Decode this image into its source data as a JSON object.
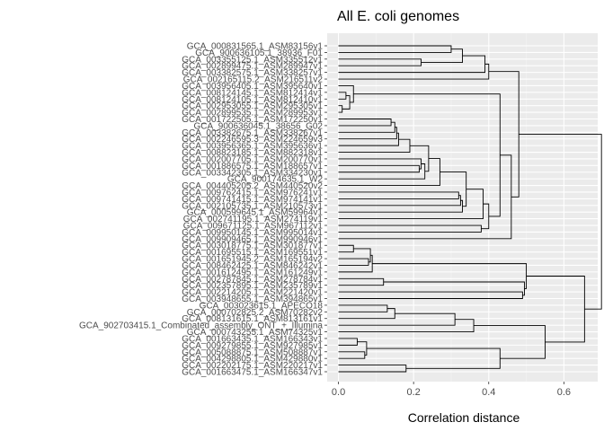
{
  "chart_data": {
    "type": "dendrogram",
    "title": "All E. coli genomes",
    "xlabel": "Correlation distance",
    "ylabel": "",
    "xlim": [
      -0.03,
      0.69
    ],
    "x_ticks": [
      0.0,
      0.2,
      0.4,
      0.6
    ],
    "x_tick_labels": [
      "0.0",
      "0.2",
      "0.4",
      "0.6"
    ],
    "grid": true,
    "panel_color": "#ebebeb",
    "line_color": "#000000",
    "leaves": [
      "GCA_000831565.1_ASM83156v1",
      "GCA_900636105.1_38936_F01",
      "GCA_003355125.1_ASM335512v1",
      "GCA_002899475.1_ASM289947v1",
      "GCA_003382575.1_ASM338257v1",
      "GCA_002165115.2_ASM216511v2",
      "GCA_003956405.1_ASM395640v1",
      "GCA_008124145.1_ASM812414v1",
      "GCA_008124105.1_ASM812410v1",
      "GCA_002953055.1_ASM295305v1",
      "GCA_002899535.1_ASM289953v1",
      "GCA_001722505.1_ASM172250v1",
      "GCA_900636045.1_38656_G02",
      "GCA_003382675.1_ASM338267v1",
      "GCA_002246595.3_ASM224659v3",
      "GCA_003956365.1_ASM395636v1",
      "GCA_008823185.1_ASM882318v1",
      "GCA_002007705.1_ASM200770v1",
      "GCA_001886575.1_ASM188657v1",
      "GCA_003342305.1_ASM334230v1",
      "GCA_900174635.1_W2",
      "GCA_004405205.2_ASM440520v2",
      "GCA_009762415.1_ASM976241v1",
      "GCA_009741415.1_ASM974141v1",
      "GCA_002105735.1_ASM210573v1",
      "GCA_000599645.1_ASM59964v1",
      "GCA_002741195.1_ASM274119v1",
      "GCA_009671125.1_ASM967112v1",
      "GCA_009950145.1_ASM995014v1",
      "GCA_009909465.1_ASM990946v1",
      "GCA_003018775.1_ASM301877v1",
      "GCA_001695515.1_ASM169551v1",
      "GCA_001651945.2_ASM165194v2",
      "GCA_008462425.1_ASM846242v1",
      "GCA_001612495.1_ASM161249v1",
      "GCA_002787845.1_ASM278784v1",
      "GCA_002357895.1_ASM235789v1",
      "GCA_002214205.1_ASM221420v1",
      "GCA_003948655.1_ASM394865v1",
      "GCA_003023615.1_APECO18",
      "GCA_000702825.2_ASM70282v2",
      "GCA_008131615.1_ASM813161v1",
      "GCA_902703415.1_Combinated_assembly_ONT_+_Illumina",
      "GCA_000743255.1_ASM74325v1",
      "GCA_001663435.1_ASM166343v1",
      "GCA_009279855.1_ASM927985v1",
      "GCA_005088875.1_ASM508887v1",
      "GCA_004298805.1_ASM429880v1",
      "GCA_002202175.1_ASM220217v1",
      "GCA_001663475.1_ASM166347v1"
    ],
    "merges": [
      {
        "a": "L0",
        "b": "L1",
        "h": 0.3
      },
      {
        "a": "L2",
        "b": "L3",
        "h": 0.22
      },
      {
        "a": "N0",
        "b": "N1",
        "h": 0.33
      },
      {
        "a": "L4",
        "b": "N2",
        "h": 0.39
      },
      {
        "a": "L5",
        "b": "N3",
        "h": 0.4
      },
      {
        "a": "L7",
        "b": "L8",
        "h": 0.02
      },
      {
        "a": "L9",
        "b": "L10",
        "h": 0.01
      },
      {
        "a": "N5",
        "b": "N6",
        "h": 0.03
      },
      {
        "a": "L6",
        "b": "N7",
        "h": 0.04
      },
      {
        "a": "L11",
        "b": "L12",
        "h": 0.14
      },
      {
        "a": "N9",
        "b": "L13",
        "h": 0.15
      },
      {
        "a": "N10",
        "b": "L14",
        "h": 0.155
      },
      {
        "a": "N11",
        "b": "L15",
        "h": 0.16
      },
      {
        "a": "N12",
        "b": "L16",
        "h": 0.19
      },
      {
        "a": "L18",
        "b": "L19",
        "h": 0.215
      },
      {
        "a": "L17",
        "b": "N14",
        "h": 0.22
      },
      {
        "a": "N15",
        "b": "L20",
        "h": 0.23
      },
      {
        "a": "N13",
        "b": "N16",
        "h": 0.24
      },
      {
        "a": "L21",
        "b": "N17",
        "h": 0.27
      },
      {
        "a": "L22",
        "b": "L23",
        "h": 0.32
      },
      {
        "a": "N19",
        "b": "L24",
        "h": 0.325
      },
      {
        "a": "N20",
        "b": "L25",
        "h": 0.33
      },
      {
        "a": "N18",
        "b": "N21",
        "h": 0.34
      },
      {
        "a": "L27",
        "b": "L28",
        "h": 0.38
      },
      {
        "a": "N22",
        "b": "L26",
        "h": 0.385
      },
      {
        "a": "N24",
        "b": "N23",
        "h": 0.4
      },
      {
        "a": "N8",
        "b": "N25",
        "h": 0.43
      },
      {
        "a": "N26",
        "b": "L29",
        "h": 0.46
      },
      {
        "a": "N4",
        "b": "N27",
        "h": 0.48
      },
      {
        "a": "L30",
        "b": "L31",
        "h": 0.04
      },
      {
        "a": "L32",
        "b": "L33",
        "h": 0.08
      },
      {
        "a": "N29",
        "b": "N30",
        "h": 0.085
      },
      {
        "a": "N31",
        "b": "L34",
        "h": 0.09
      },
      {
        "a": "L35",
        "b": "L36",
        "h": 0.12
      },
      {
        "a": "L37",
        "b": "L38",
        "h": 0.49
      },
      {
        "a": "N33",
        "b": "N34",
        "h": 0.495
      },
      {
        "a": "N32",
        "b": "N35",
        "h": 0.5
      },
      {
        "a": "L39",
        "b": "L40",
        "h": 0.13
      },
      {
        "a": "N37",
        "b": "L41",
        "h": 0.15
      },
      {
        "a": "N38",
        "b": "L42",
        "h": 0.31
      },
      {
        "a": "N39",
        "b": "L43",
        "h": 0.36
      },
      {
        "a": "L44",
        "b": "L45",
        "h": 0.05
      },
      {
        "a": "L46",
        "b": "L47",
        "h": 0.07
      },
      {
        "a": "N41",
        "b": "N42",
        "h": 0.075
      },
      {
        "a": "L48",
        "b": "L49",
        "h": 0.18
      },
      {
        "a": "N43",
        "b": "N44",
        "h": 0.43
      },
      {
        "a": "N40",
        "b": "N45",
        "h": 0.55
      },
      {
        "a": "N36",
        "b": "N46",
        "h": 0.655
      },
      {
        "a": "N28",
        "b": "N47",
        "h": 0.7
      }
    ]
  }
}
